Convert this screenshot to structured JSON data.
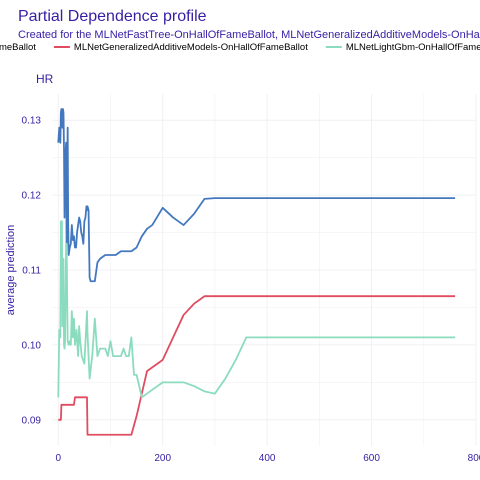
{
  "chart_data": {
    "type": "line",
    "title": "Partial Dependence profile",
    "subtitle": "Created for the MLNetFastTree-OnHallOfFameBallot, MLNetGeneralizedAdditiveModels-OnHallOfFameBallot, MLNetLightGbm-OnHallOfFameBallot model",
    "panel_label": "HR",
    "xlabel": "",
    "ylabel": "average prediction",
    "xlim": [
      -12,
      800
    ],
    "ylim": [
      0.0865,
      0.1335
    ],
    "x_ticks": [
      0,
      200,
      400,
      600,
      800
    ],
    "y_ticks": [
      0.09,
      0.1,
      0.11,
      0.12,
      0.13
    ],
    "y_tick_labels": [
      "0.09",
      "0.10",
      "0.11",
      "0.12",
      "0.13"
    ],
    "grid": true,
    "legend_position": "top",
    "colors": {
      "title": "#371ea3",
      "axis_text": "#371ea3",
      "grid": "#f0f0f4"
    },
    "series": [
      {
        "name": "MLNetFastTree-OnHallOfFameBallot",
        "legend_label": "MLNetFastTree-OnHallOfFameBallot",
        "color": "#4378bf",
        "x": [
          0,
          2,
          4,
          5,
          6,
          7,
          8,
          9,
          10,
          11,
          12,
          13,
          14,
          15,
          16,
          17,
          18,
          19,
          20,
          22,
          24,
          26,
          28,
          30,
          32,
          34,
          36,
          38,
          40,
          42,
          44,
          46,
          48,
          50,
          52,
          54,
          55,
          56,
          58,
          60,
          62,
          65,
          70,
          75,
          80,
          90,
          100,
          110,
          120,
          130,
          140,
          150,
          160,
          170,
          180,
          200,
          220,
          240,
          260,
          280,
          300,
          350,
          400,
          500,
          600,
          700,
          760
        ],
        "y": [
          0.127,
          0.129,
          0.127,
          0.131,
          0.1315,
          0.131,
          0.129,
          0.1315,
          0.131,
          0.126,
          0.117,
          0.126,
          0.1255,
          0.127,
          0.113,
          0.122,
          0.129,
          0.116,
          0.112,
          0.113,
          0.1135,
          0.116,
          0.114,
          0.1145,
          0.113,
          0.113,
          0.115,
          0.116,
          0.117,
          0.1165,
          0.115,
          0.1145,
          0.1135,
          0.1165,
          0.117,
          0.1185,
          0.118,
          0.1185,
          0.118,
          0.109,
          0.1085,
          0.1085,
          0.1085,
          0.111,
          0.1115,
          0.112,
          0.112,
          0.112,
          0.1125,
          0.1125,
          0.1125,
          0.113,
          0.1145,
          0.1155,
          0.116,
          0.1183,
          0.117,
          0.116,
          0.1175,
          0.1195,
          0.1196,
          0.1196,
          0.1196,
          0.1196,
          0.1196,
          0.1196,
          0.1196
        ]
      },
      {
        "name": "MLNetGeneralizedAdditiveModels-OnHallOfFameBallot",
        "legend_label": "MLNetGeneralizedAdditiveModels-OnHallOfFameBallot",
        "color": "#e04c60",
        "x": [
          0,
          5,
          6,
          10,
          20,
          30,
          32,
          40,
          50,
          55,
          56,
          60,
          80,
          100,
          120,
          140,
          150,
          170,
          190,
          200,
          210,
          220,
          240,
          260,
          280,
          285,
          300,
          350,
          400,
          500,
          600,
          700,
          760
        ],
        "y": [
          0.09,
          0.09,
          0.092,
          0.092,
          0.092,
          0.092,
          0.093,
          0.093,
          0.093,
          0.093,
          0.088,
          0.088,
          0.088,
          0.088,
          0.088,
          0.088,
          0.0905,
          0.0965,
          0.0975,
          0.098,
          0.0995,
          0.101,
          0.104,
          0.1055,
          0.1065,
          0.1065,
          0.1065,
          0.1065,
          0.1065,
          0.1065,
          0.1065,
          0.1065,
          0.1065
        ]
      },
      {
        "name": "MLNetLightGbm-OnHallOfFameBallot",
        "legend_label": "MLNetLightGbm-OnHallOfFameBallot",
        "color": "#8bdcbe",
        "x": [
          0,
          2,
          4,
          5,
          6,
          7,
          8,
          9,
          10,
          11,
          12,
          13,
          14,
          15,
          16,
          18,
          20,
          22,
          24,
          26,
          28,
          30,
          32,
          35,
          38,
          40,
          42,
          45,
          50,
          55,
          56,
          60,
          65,
          70,
          75,
          80,
          85,
          90,
          95,
          100,
          105,
          110,
          115,
          120,
          125,
          130,
          135,
          140,
          145,
          150,
          160,
          170,
          180,
          200,
          220,
          240,
          260,
          280,
          300,
          320,
          340,
          360,
          400,
          500,
          600,
          700,
          760
        ],
        "y": [
          0.093,
          0.102,
          0.101,
          0.1165,
          0.1155,
          0.1165,
          0.1025,
          0.1085,
          0.1115,
          0.1,
          0.0995,
          0.1005,
          0.1065,
          0.1135,
          0.1135,
          0.1005,
          0.1,
          0.1005,
          0.1,
          0.1045,
          0.101,
          0.1035,
          0.1,
          0.102,
          0.0985,
          0.1025,
          0.1005,
          0.0985,
          0.0975,
          0.1045,
          0.1015,
          0.0955,
          0.0985,
          0.1035,
          0.0985,
          0.0995,
          0.0995,
          0.0995,
          0.0985,
          0.1005,
          0.0985,
          0.0985,
          0.0985,
          0.0985,
          0.0995,
          0.0985,
          0.0985,
          0.101,
          0.096,
          0.096,
          0.093,
          0.0935,
          0.094,
          0.095,
          0.095,
          0.095,
          0.0945,
          0.0938,
          0.0935,
          0.0955,
          0.098,
          0.101,
          0.101,
          0.101,
          0.101,
          0.101,
          0.101
        ]
      }
    ]
  }
}
